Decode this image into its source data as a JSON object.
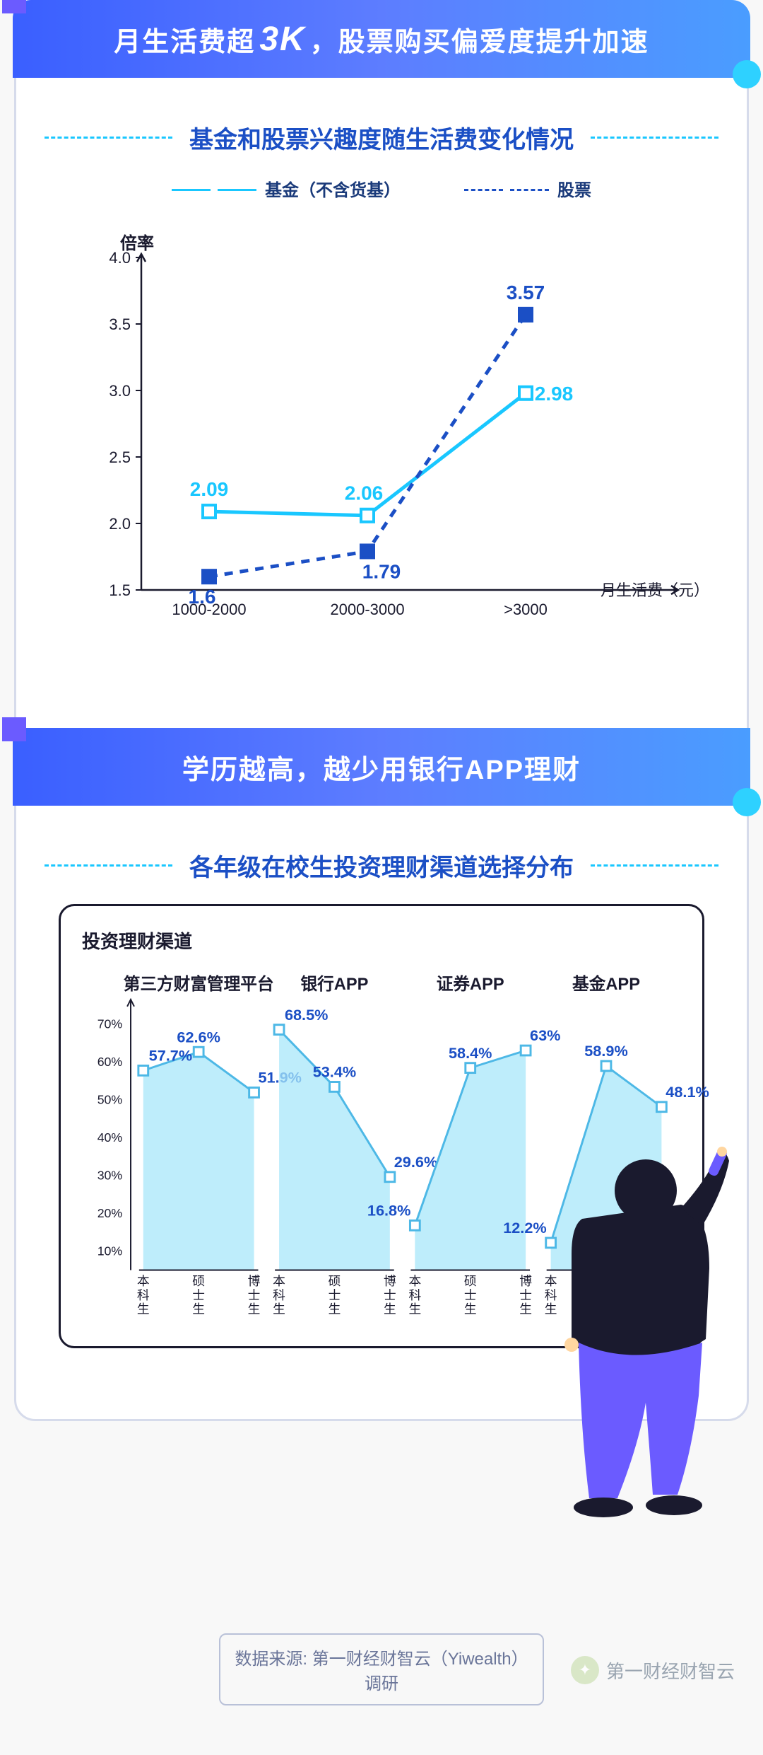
{
  "colors": {
    "banner_grad_from": "#3a5fff",
    "banner_grad_to": "#4a9dff",
    "accent_cyan": "#19c7ff",
    "deep_blue": "#1b4fc5",
    "navy": "#1a3a7a",
    "border_gray": "#d6dbeb",
    "text_gray": "#6a7599",
    "black": "#1a1a2e",
    "area_fill": "#a8e7fa",
    "area_stroke": "#4db8e6"
  },
  "banner1": {
    "pre": "月生活费超",
    "em": "3K",
    "post": "，股票购买偏爱度提升加速"
  },
  "banner2": {
    "text": "学历越高，越少用银行APP理财"
  },
  "section1": {
    "title": "基金和股票兴趣度随生活费变化情况",
    "legend": {
      "line1": "基金（不含货基）",
      "line2": "股票"
    },
    "chart": {
      "type": "line",
      "y_label": "倍率",
      "x_label": "月生活费（元）",
      "categories": [
        "1000-2000",
        "2000-3000",
        ">3000"
      ],
      "y_ticks": [
        1.5,
        2.0,
        2.5,
        3.0,
        3.5,
        4.0
      ],
      "ylim": [
        1.5,
        4.0
      ],
      "series_fund": {
        "values": [
          2.09,
          2.06,
          2.98
        ],
        "labels": [
          "2.09",
          "2.06",
          "2.98"
        ],
        "color": "#19c7ff",
        "style": "solid",
        "marker_fill": "#ffffff",
        "marker_stroke": "#19c7ff"
      },
      "series_stock": {
        "values": [
          1.6,
          1.79,
          3.57
        ],
        "labels": [
          "1.6",
          "1.79",
          "3.57"
        ],
        "color": "#1b4fc5",
        "style": "dashed",
        "marker_fill": "#1b4fc5",
        "marker_stroke": "#1b4fc5"
      },
      "label_fontsize": 28,
      "tick_fontsize": 22
    }
  },
  "section2": {
    "title": "各年级在校生投资理财渠道选择分布",
    "box_title": "投资理财渠道",
    "chart": {
      "type": "area_multi",
      "y_ticks_pct": [
        10,
        20,
        30,
        40,
        50,
        60,
        70
      ],
      "ylim_pct": [
        5,
        75
      ],
      "x_labels": [
        "本科生",
        "硕士生",
        "博士生"
      ],
      "panels": [
        {
          "name": "第三方财富管理平台",
          "values": [
            57.7,
            62.6,
            51.9
          ],
          "labels": [
            "57.7%",
            "62.6%",
            "51.9%"
          ]
        },
        {
          "name": "银行APP",
          "values": [
            68.5,
            53.4,
            29.6
          ],
          "labels": [
            "68.5%",
            "53.4%",
            "29.6%"
          ]
        },
        {
          "name": "证券APP",
          "values": [
            16.8,
            58.4,
            63.0
          ],
          "labels": [
            "16.8%",
            "58.4%",
            "63%"
          ]
        },
        {
          "name": "基金APP",
          "values": [
            12.2,
            58.9,
            48.1
          ],
          "labels": [
            "12.2%",
            "58.9%",
            "48.1%"
          ]
        }
      ],
      "area_fill": "#a8e7fa",
      "area_stroke": "#4db8e6",
      "marker_fill": "#ffffff",
      "label_color": "#1b4fc5",
      "label_fontsize": 22,
      "tick_fontsize": 18,
      "header_fontsize": 24
    }
  },
  "source": "数据来源: 第一财经财智云（Yiwealth）调研",
  "watermark": "第一财经财智云"
}
